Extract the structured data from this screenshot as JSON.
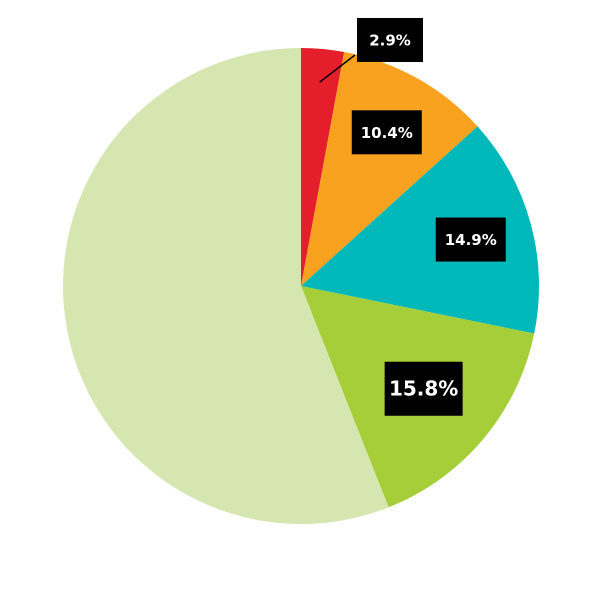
{
  "chart_data": {
    "type": "pie",
    "values": [
      2.9,
      10.4,
      14.9,
      15.8,
      56.0
    ],
    "value_labels": [
      "2.9%",
      "10.4%",
      "14.9%",
      "15.8%",
      null
    ],
    "colors": [
      "#e41e2b",
      "#f9a21f",
      "#00b8b9",
      "#a6ce39",
      "#d6e6b0"
    ]
  }
}
